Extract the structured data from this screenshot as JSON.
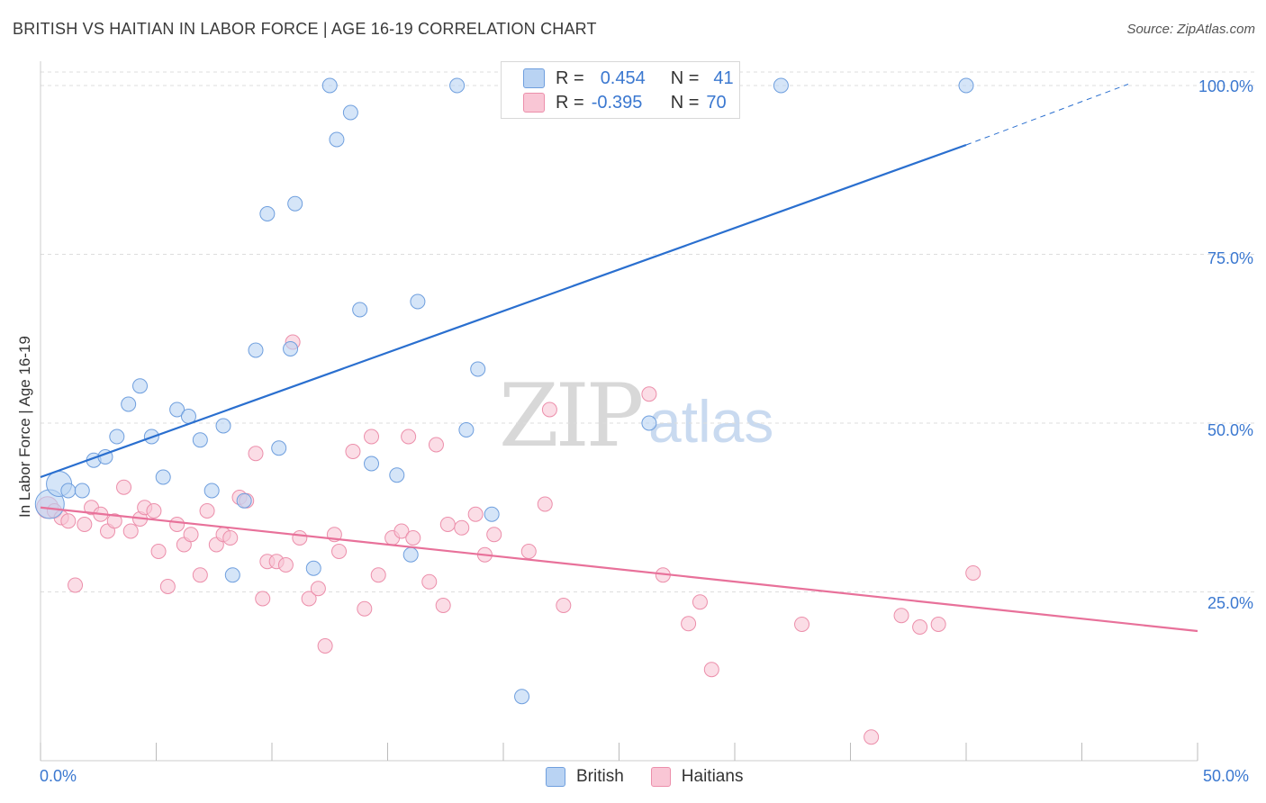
{
  "header": {
    "title": "BRITISH VS HAITIAN IN LABOR FORCE | AGE 16-19 CORRELATION CHART",
    "source": "Source: ZipAtlas.com"
  },
  "watermark": {
    "zip": "ZIP",
    "atlas": "atlas"
  },
  "legend_top": {
    "british": {
      "r_label": "R =",
      "r_value": "0.454",
      "n_label": "N =",
      "n_value": "41"
    },
    "haitians": {
      "r_label": "R =",
      "r_value": "-0.395",
      "n_label": "N =",
      "n_value": "70"
    }
  },
  "legend_bottom": {
    "british": "British",
    "haitians": "Haitians"
  },
  "colors": {
    "british_fill": "#b9d3f3",
    "british_stroke": "#6f9fde",
    "british_line": "#2a6fcf",
    "haitian_fill": "#f9c6d5",
    "haitian_stroke": "#ec8fab",
    "haitian_line": "#e8719a",
    "grid": "#dddddd",
    "tick_label": "#3b78d0"
  },
  "chart_data": {
    "type": "scatter",
    "title": "BRITISH VS HAITIAN IN LABOR FORCE | AGE 16-19 CORRELATION CHART",
    "ylabel": "In Labor Force | Age 16-19",
    "xlabel": "",
    "xlim": [
      0,
      50
    ],
    "ylim": [
      0,
      102
    ],
    "x_tick_labels": [
      "0.0%",
      "50.0%"
    ],
    "y_ticks": [
      25,
      50,
      75,
      100
    ],
    "y_tick_labels": [
      "25.0%",
      "50.0%",
      "75.0%",
      "100.0%"
    ],
    "grid": true,
    "legend_position": "top-center",
    "series": [
      {
        "name": "British",
        "r": 0.454,
        "n": 41,
        "trend": {
          "x0": 0,
          "y0": 42.0,
          "x1": 40,
          "y1": 91.2,
          "dashed_to_x": 47,
          "dashed_to_y": 100.2
        },
        "points": [
          [
            0.4,
            38.0,
            16
          ],
          [
            0.8,
            41.0,
            14
          ],
          [
            1.2,
            40.0,
            8
          ],
          [
            1.8,
            40.0,
            8
          ],
          [
            2.3,
            44.5,
            8
          ],
          [
            2.8,
            45.0,
            8
          ],
          [
            3.3,
            48.0,
            8
          ],
          [
            3.8,
            52.8,
            8
          ],
          [
            4.3,
            55.5,
            8
          ],
          [
            4.8,
            48.0,
            8
          ],
          [
            5.3,
            42.0,
            8
          ],
          [
            5.9,
            52.0,
            8
          ],
          [
            6.4,
            51.0,
            8
          ],
          [
            6.9,
            47.5,
            8
          ],
          [
            7.4,
            40.0,
            8
          ],
          [
            7.9,
            49.6,
            8
          ],
          [
            8.3,
            27.5,
            8
          ],
          [
            8.8,
            38.5,
            8
          ],
          [
            9.3,
            60.8,
            8
          ],
          [
            9.8,
            81.0,
            8
          ],
          [
            10.3,
            46.3,
            8
          ],
          [
            10.8,
            61.0,
            8
          ],
          [
            11.0,
            82.5,
            8
          ],
          [
            11.8,
            28.5,
            8
          ],
          [
            12.5,
            100.0,
            8
          ],
          [
            12.8,
            92.0,
            8
          ],
          [
            13.4,
            96.0,
            8
          ],
          [
            13.8,
            66.8,
            8
          ],
          [
            14.3,
            44.0,
            8
          ],
          [
            15.4,
            42.3,
            8
          ],
          [
            16.0,
            30.5,
            8
          ],
          [
            16.3,
            68.0,
            8
          ],
          [
            18.0,
            100.0,
            8
          ],
          [
            18.4,
            49.0,
            8
          ],
          [
            18.9,
            58.0,
            8
          ],
          [
            19.5,
            36.5,
            8
          ],
          [
            20.8,
            9.5,
            8
          ],
          [
            22.5,
            100.0,
            8
          ],
          [
            26.3,
            50.0,
            8
          ],
          [
            32.0,
            100.0,
            8
          ],
          [
            40.0,
            100.0,
            8
          ]
        ]
      },
      {
        "name": "Haitians",
        "r": -0.395,
        "n": 70,
        "trend": {
          "x0": 0,
          "y0": 37.5,
          "x1": 50,
          "y1": 19.2
        },
        "points": [
          [
            0.3,
            37.5,
            12
          ],
          [
            0.6,
            37.0,
            8
          ],
          [
            0.9,
            36.0,
            8
          ],
          [
            1.2,
            35.5,
            8
          ],
          [
            1.5,
            26.0,
            8
          ],
          [
            1.9,
            35.0,
            8
          ],
          [
            2.2,
            37.5,
            8
          ],
          [
            2.6,
            36.5,
            8
          ],
          [
            2.9,
            34.0,
            8
          ],
          [
            3.2,
            35.5,
            8
          ],
          [
            3.6,
            40.5,
            8
          ],
          [
            3.9,
            34.0,
            8
          ],
          [
            4.3,
            35.8,
            8
          ],
          [
            4.5,
            37.5,
            8
          ],
          [
            4.9,
            37.0,
            8
          ],
          [
            5.1,
            31.0,
            8
          ],
          [
            5.5,
            25.8,
            8
          ],
          [
            5.9,
            35.0,
            8
          ],
          [
            6.2,
            32.0,
            8
          ],
          [
            6.5,
            33.5,
            8
          ],
          [
            6.9,
            27.5,
            8
          ],
          [
            7.2,
            37.0,
            8
          ],
          [
            7.6,
            32.0,
            8
          ],
          [
            7.9,
            33.5,
            8
          ],
          [
            8.2,
            33.0,
            8
          ],
          [
            8.6,
            39.0,
            8
          ],
          [
            8.9,
            38.5,
            8
          ],
          [
            9.3,
            45.5,
            8
          ],
          [
            9.6,
            24.0,
            8
          ],
          [
            9.8,
            29.5,
            8
          ],
          [
            10.2,
            29.5,
            8
          ],
          [
            10.6,
            29.0,
            8
          ],
          [
            10.9,
            62.0,
            8
          ],
          [
            11.2,
            33.0,
            8
          ],
          [
            11.6,
            24.0,
            8
          ],
          [
            12.0,
            25.5,
            8
          ],
          [
            12.3,
            17.0,
            8
          ],
          [
            12.7,
            33.5,
            8
          ],
          [
            12.9,
            31.0,
            8
          ],
          [
            13.5,
            45.8,
            8
          ],
          [
            14.0,
            22.5,
            8
          ],
          [
            14.3,
            48.0,
            8
          ],
          [
            14.6,
            27.5,
            8
          ],
          [
            15.2,
            33.0,
            8
          ],
          [
            15.6,
            34.0,
            8
          ],
          [
            15.9,
            48.0,
            8
          ],
          [
            16.1,
            33.0,
            8
          ],
          [
            16.8,
            26.5,
            8
          ],
          [
            17.1,
            46.8,
            8
          ],
          [
            17.4,
            23.0,
            8
          ],
          [
            17.6,
            35.0,
            8
          ],
          [
            18.2,
            34.5,
            8
          ],
          [
            18.8,
            36.5,
            8
          ],
          [
            19.2,
            30.5,
            8
          ],
          [
            19.6,
            33.5,
            8
          ],
          [
            21.1,
            31.0,
            8
          ],
          [
            21.8,
            38.0,
            8
          ],
          [
            22.0,
            52.0,
            8
          ],
          [
            22.6,
            23.0,
            8
          ],
          [
            26.3,
            54.3,
            8
          ],
          [
            26.9,
            27.5,
            8
          ],
          [
            28.0,
            20.3,
            8
          ],
          [
            28.5,
            23.5,
            8
          ],
          [
            29.0,
            13.5,
            8
          ],
          [
            32.9,
            20.2,
            8
          ],
          [
            35.9,
            3.5,
            8
          ],
          [
            37.2,
            21.5,
            8
          ],
          [
            38.0,
            19.8,
            8
          ],
          [
            38.8,
            20.2,
            8
          ],
          [
            40.3,
            27.8,
            8
          ]
        ]
      }
    ]
  }
}
